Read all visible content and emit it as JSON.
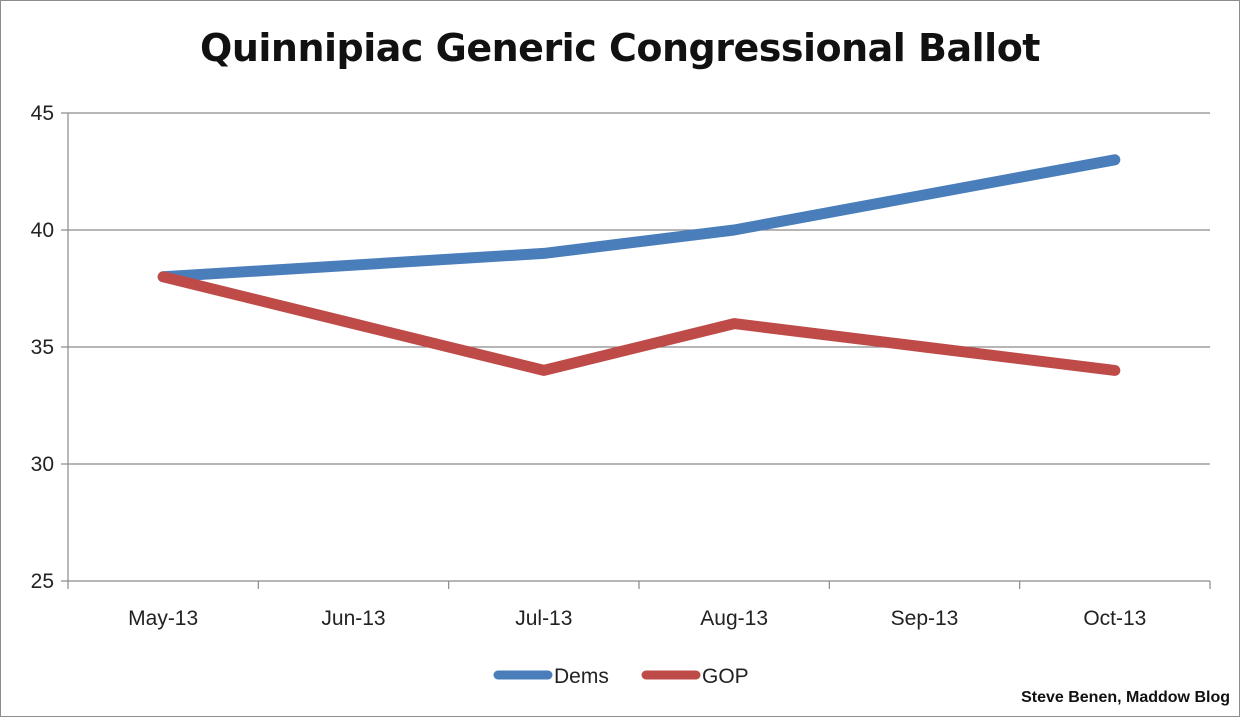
{
  "chart_data": {
    "type": "line",
    "title": "Quinnipiac Generic Congressional Ballot",
    "categories": [
      "May-13",
      "Jun-13",
      "Jul-13",
      "Aug-13",
      "Sep-13",
      "Oct-13"
    ],
    "series": [
      {
        "name": "Dems",
        "color": "#4a7ebb",
        "values": [
          38,
          38.5,
          39,
          40,
          41.5,
          43
        ]
      },
      {
        "name": "GOP",
        "color": "#be4b48",
        "values": [
          38,
          36,
          34,
          36,
          35,
          34
        ]
      }
    ],
    "ylim": [
      25,
      45
    ],
    "yticks": [
      25,
      30,
      35,
      40,
      45
    ],
    "grid": true,
    "legend": "bottom-center"
  },
  "credit": "Steve Benen, Maddow Blog"
}
